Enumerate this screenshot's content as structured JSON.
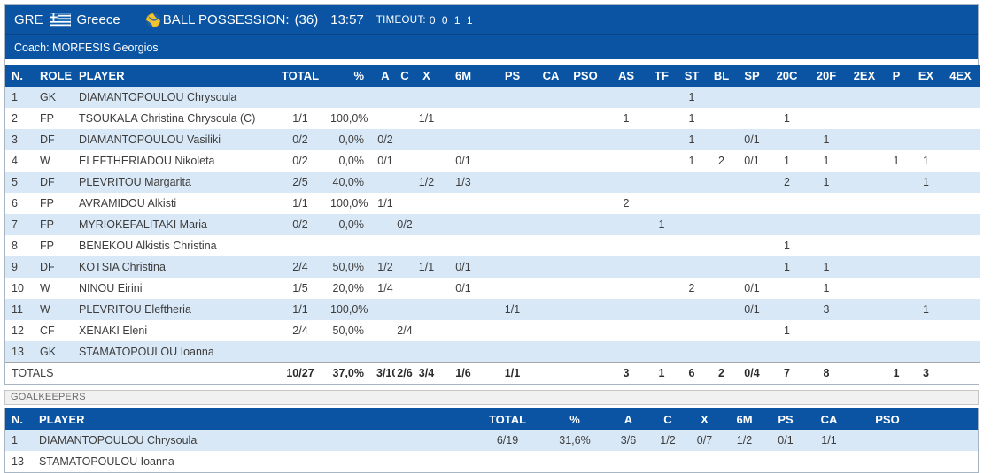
{
  "team_header": {
    "team_code": "GRE",
    "team_name": "Greece",
    "flag": "greece-flag",
    "ball_icon": "water-polo-ball",
    "possession_label": "BALL POSSESSION:",
    "possession_value": "(36)",
    "game_clock": "13:57",
    "timeout_label": "TIMEOUT:",
    "timeout_value": "0 0 1 1"
  },
  "coach_line": "Coach: MORFESIS Georgios",
  "main_table": {
    "columns": [
      "N.",
      "ROLE",
      "PLAYER",
      "TOTAL",
      "%",
      "A",
      "C",
      "X",
      "6M",
      "PS",
      "CA",
      "PSO",
      "AS",
      "TF",
      "ST",
      "BL",
      "SP",
      "20C",
      "20F",
      "2EX",
      "P",
      "EX",
      "4EX"
    ],
    "rows": [
      [
        "1",
        "GK",
        "DIAMANTOPOULOU Chrysoula",
        "",
        "",
        "",
        "",
        "",
        "",
        "",
        "",
        "",
        "",
        "",
        "1",
        "",
        "",
        "",
        "",
        "",
        "",
        "",
        ""
      ],
      [
        "2",
        "FP",
        "TSOUKALA Christina Chrysoula (C)",
        "1/1",
        "100,0%",
        "",
        "",
        "1/1",
        "",
        "",
        "",
        "",
        "1",
        "",
        "1",
        "",
        "",
        "1",
        "",
        "",
        "",
        "",
        ""
      ],
      [
        "3",
        "DF",
        "DIAMANTOPOULOU Vasiliki",
        "0/2",
        "0,0%",
        "0/2",
        "",
        "",
        "",
        "",
        "",
        "",
        "",
        "",
        "1",
        "",
        "0/1",
        "",
        "1",
        "",
        "",
        "",
        ""
      ],
      [
        "4",
        "W",
        "ELEFTHERIADOU Nikoleta",
        "0/2",
        "0,0%",
        "0/1",
        "",
        "",
        "0/1",
        "",
        "",
        "",
        "",
        "",
        "1",
        "2",
        "0/1",
        "1",
        "1",
        "",
        "1",
        "1",
        ""
      ],
      [
        "5",
        "DF",
        "PLEVRITOU Margarita",
        "2/5",
        "40,0%",
        "",
        "",
        "1/2",
        "1/3",
        "",
        "",
        "",
        "",
        "",
        "",
        "",
        "",
        "2",
        "1",
        "",
        "",
        "1",
        ""
      ],
      [
        "6",
        "FP",
        "AVRAMIDOU Alkisti",
        "1/1",
        "100,0%",
        "1/1",
        "",
        "",
        "",
        "",
        "",
        "",
        "2",
        "",
        "",
        "",
        "",
        "",
        "",
        "",
        "",
        "",
        ""
      ],
      [
        "7",
        "FP",
        "MYRIOKEFALITAKI Maria",
        "0/2",
        "0,0%",
        "",
        "0/2",
        "",
        "",
        "",
        "",
        "",
        "",
        "1",
        "",
        "",
        "",
        "",
        "",
        "",
        "",
        "",
        ""
      ],
      [
        "8",
        "FP",
        "BENEKOU Alkistis Christina",
        "",
        "",
        "",
        "",
        "",
        "",
        "",
        "",
        "",
        "",
        "",
        "",
        "",
        "",
        "1",
        "",
        "",
        "",
        "",
        ""
      ],
      [
        "9",
        "DF",
        "KOTSIA Christina",
        "2/4",
        "50,0%",
        "1/2",
        "",
        "1/1",
        "0/1",
        "",
        "",
        "",
        "",
        "",
        "",
        "",
        "",
        "1",
        "1",
        "",
        "",
        "",
        ""
      ],
      [
        "10",
        "W",
        "NINOU Eirini",
        "1/5",
        "20,0%",
        "1/4",
        "",
        "",
        "0/1",
        "",
        "",
        "",
        "",
        "",
        "2",
        "",
        "0/1",
        "",
        "1",
        "",
        "",
        "",
        ""
      ],
      [
        "11",
        "W",
        "PLEVRITOU Eleftheria",
        "1/1",
        "100,0%",
        "",
        "",
        "",
        "",
        "1/1",
        "",
        "",
        "",
        "",
        "",
        "",
        "0/1",
        "",
        "3",
        "",
        "",
        "1",
        ""
      ],
      [
        "12",
        "CF",
        "XENAKI Eleni",
        "2/4",
        "50,0%",
        "",
        "2/4",
        "",
        "",
        "",
        "",
        "",
        "",
        "",
        "",
        "",
        "",
        "1",
        "",
        "",
        "",
        "",
        ""
      ],
      [
        "13",
        "GK",
        "STAMATOPOULOU Ioanna",
        "",
        "",
        "",
        "",
        "",
        "",
        "",
        "",
        "",
        "",
        "",
        "",
        "",
        "",
        "",
        "",
        "",
        "",
        "",
        ""
      ]
    ],
    "totals": {
      "label": "TOTALS",
      "values": [
        "10/27",
        "37,0%",
        "3/10",
        "2/6",
        "3/4",
        "1/6",
        "1/1",
        "",
        "",
        "3",
        "1",
        "6",
        "2",
        "0/4",
        "7",
        "8",
        "",
        "1",
        "3",
        ""
      ]
    }
  },
  "goalkeepers": {
    "section_label": "GOALKEEPERS",
    "columns": [
      "N.",
      "PLAYER",
      "TOTAL",
      "%",
      "A",
      "C",
      "X",
      "6M",
      "PS",
      "CA",
      "PSO"
    ],
    "rows": [
      [
        "1",
        "DIAMANTOPOULOU Chrysoula",
        "6/19",
        "31,6%",
        "3/6",
        "1/2",
        "0/7",
        "1/2",
        "0/1",
        "1/1",
        ""
      ],
      [
        "13",
        "STAMATOPOULOU Ioanna",
        "",
        "",
        "",
        "",
        "",
        "",
        "",
        "",
        ""
      ]
    ]
  },
  "colors": {
    "header_blue": "#0A54A3",
    "row_alt_blue": "#D9E8F6",
    "flag_blue": "#0D5EAF",
    "ball_yellow": "#F4C430",
    "ball_blue": "#1C63B0",
    "text_dark": "#3D3D3D"
  }
}
